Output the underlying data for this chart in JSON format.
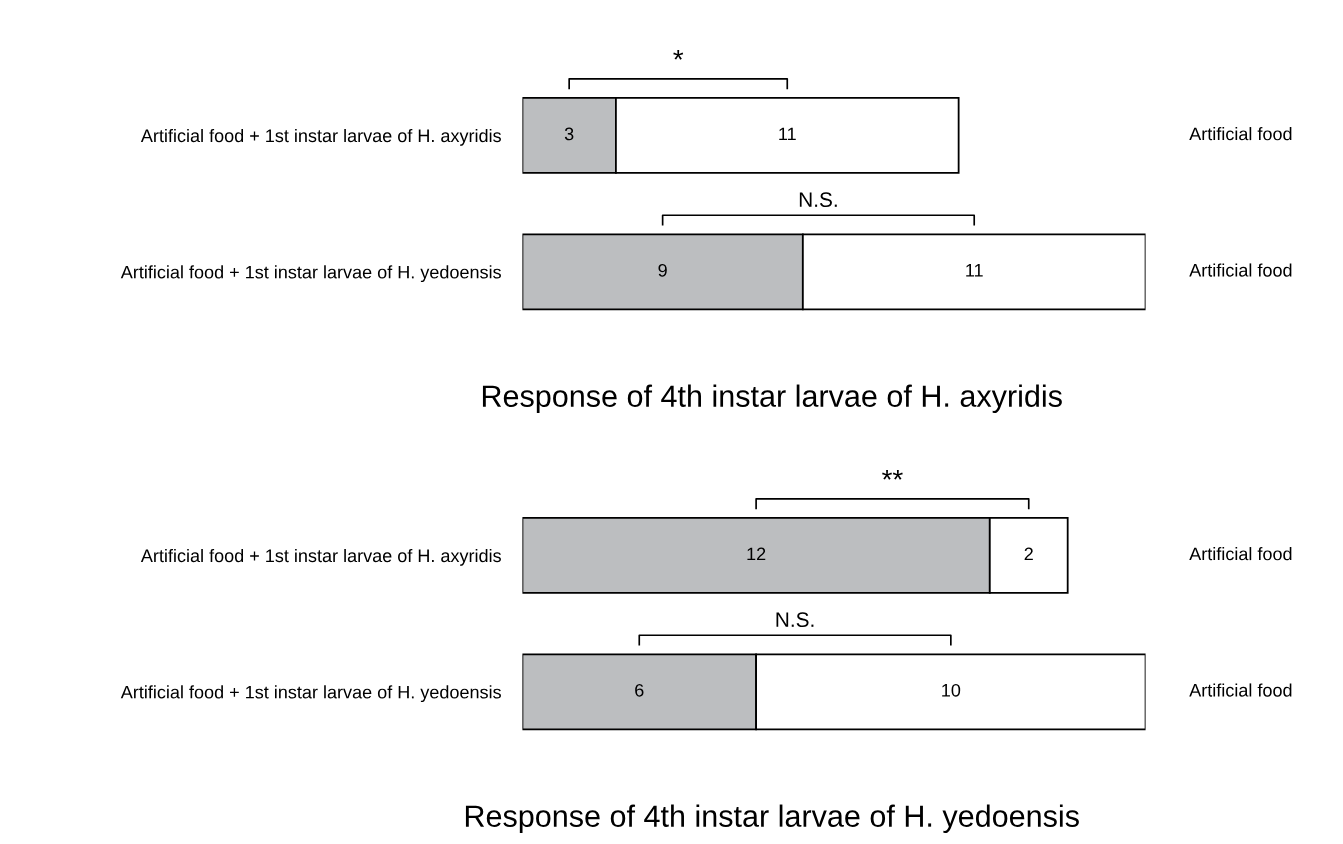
{
  "chart_data": [
    {
      "type": "bar",
      "orientation": "horizontal",
      "stacked": true,
      "data_labels": true,
      "title": "Response of 4th instar larvae of H. axyridis",
      "categories": [
        "Artificial food + 1st instar larvae of H. axyridis",
        "Artificial food + 1st instar larvae of H. yedoensis"
      ],
      "series": [
        {
          "color": "#bcbec0",
          "values": [
            3,
            9
          ]
        },
        {
          "color": "#ffffff",
          "values": [
            11,
            11
          ]
        }
      ],
      "annotations": [
        "*",
        "N.S.",
        "Artificial food",
        "Artificial food"
      ]
    },
    {
      "type": "bar",
      "orientation": "horizontal",
      "stacked": true,
      "data_labels": true,
      "title": "Response of 4th instar larvae of H. yedoensis",
      "categories": [
        "Artificial food + 1st instar larvae of H. axyridis",
        "Artificial food + 1st instar larvae of H. yedoensis"
      ],
      "series": [
        {
          "color": "#bcbec0",
          "values": [
            12,
            6
          ]
        },
        {
          "color": "#ffffff",
          "values": [
            2,
            10
          ]
        }
      ],
      "annotations": [
        "**",
        "N.S.",
        "Artificial food",
        "Artificial food"
      ]
    }
  ]
}
